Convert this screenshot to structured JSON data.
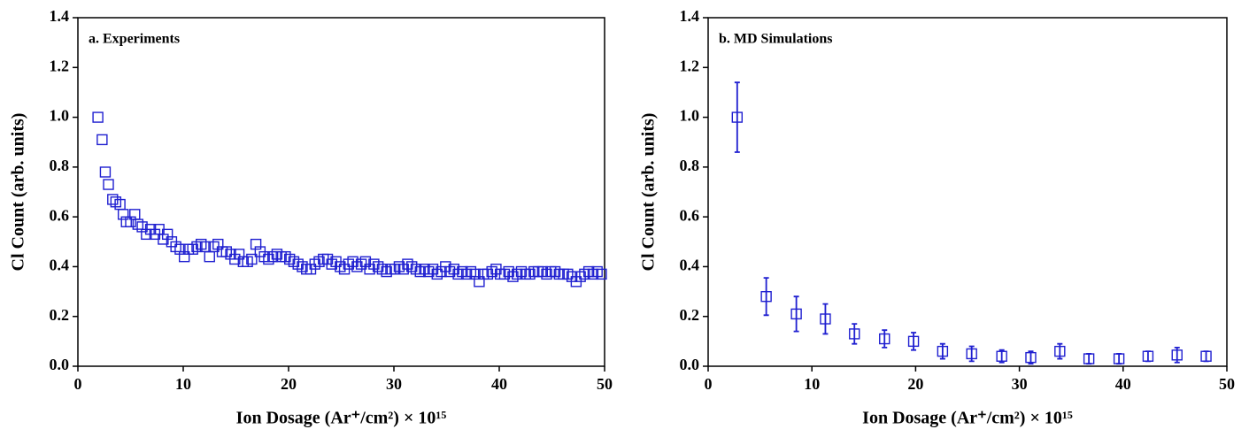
{
  "chart_data": [
    {
      "type": "scatter",
      "annotation": "a. Experiments",
      "x_label": "Ion Dosage (Ar⁺/cm²) × 10¹⁵",
      "y_label": "Cl Count (arb. units)",
      "color": "#1f1fd0",
      "xlim": [
        0,
        50
      ],
      "ylim": [
        0,
        1.4
      ],
      "xticks": [
        0,
        10,
        20,
        30,
        40,
        50
      ],
      "yticks": [
        {
          "value": 0,
          "label": "0.0"
        },
        0.2,
        0.4,
        0.6,
        0.8,
        {
          "value": 1,
          "label": "1.0"
        },
        1.2,
        1.4
      ],
      "x": [
        1.9,
        2.3,
        2.6,
        2.9,
        3.3,
        3.6,
        4.0,
        4.3,
        4.6,
        5.0,
        5.4,
        5.7,
        6.1,
        6.5,
        6.9,
        7.3,
        7.7,
        8.1,
        8.5,
        8.9,
        9.3,
        9.7,
        10.1,
        10.5,
        10.9,
        11.3,
        11.7,
        12.1,
        12.5,
        12.9,
        13.3,
        13.7,
        14.1,
        14.5,
        14.9,
        15.3,
        15.7,
        16.1,
        16.5,
        16.9,
        17.3,
        17.7,
        18.1,
        18.5,
        18.9,
        19.3,
        19.7,
        20.1,
        20.5,
        20.9,
        21.3,
        21.7,
        22.1,
        22.5,
        22.9,
        23.3,
        23.7,
        24.1,
        24.5,
        24.9,
        25.3,
        25.7,
        26.1,
        26.5,
        26.9,
        27.3,
        27.7,
        28.1,
        28.5,
        28.9,
        29.3,
        29.7,
        30.1,
        30.5,
        30.9,
        31.3,
        31.7,
        32.1,
        32.5,
        32.9,
        33.3,
        33.7,
        34.1,
        34.5,
        34.9,
        35.3,
        35.7,
        36.1,
        36.5,
        36.9,
        37.3,
        37.7,
        38.1,
        38.5,
        38.9,
        39.3,
        39.7,
        40.1,
        40.5,
        40.9,
        41.3,
        41.7,
        42.1,
        42.5,
        42.9,
        43.3,
        43.7,
        44.1,
        44.5,
        44.9,
        45.3,
        45.7,
        46.1,
        46.5,
        46.9,
        47.3,
        47.7,
        48.1,
        48.5,
        48.9,
        49.3,
        49.7
      ],
      "values": [
        1.0,
        0.91,
        0.78,
        0.73,
        0.67,
        0.66,
        0.65,
        0.61,
        0.58,
        0.58,
        0.61,
        0.57,
        0.56,
        0.53,
        0.55,
        0.53,
        0.55,
        0.51,
        0.53,
        0.5,
        0.48,
        0.47,
        0.44,
        0.47,
        0.47,
        0.48,
        0.49,
        0.48,
        0.44,
        0.48,
        0.49,
        0.46,
        0.46,
        0.45,
        0.43,
        0.45,
        0.42,
        0.42,
        0.43,
        0.49,
        0.46,
        0.44,
        0.43,
        0.44,
        0.45,
        0.44,
        0.44,
        0.43,
        0.42,
        0.41,
        0.4,
        0.39,
        0.39,
        0.41,
        0.42,
        0.43,
        0.43,
        0.41,
        0.42,
        0.4,
        0.39,
        0.41,
        0.42,
        0.4,
        0.41,
        0.42,
        0.39,
        0.41,
        0.4,
        0.39,
        0.38,
        0.39,
        0.39,
        0.4,
        0.39,
        0.41,
        0.4,
        0.39,
        0.38,
        0.39,
        0.38,
        0.39,
        0.37,
        0.38,
        0.4,
        0.38,
        0.39,
        0.37,
        0.38,
        0.37,
        0.38,
        0.37,
        0.34,
        0.37,
        0.37,
        0.38,
        0.39,
        0.37,
        0.37,
        0.38,
        0.36,
        0.37,
        0.38,
        0.37,
        0.37,
        0.38,
        0.38,
        0.38,
        0.37,
        0.38,
        0.38,
        0.37,
        0.37,
        0.37,
        0.36,
        0.34,
        0.36,
        0.37,
        0.38,
        0.37,
        0.38,
        0.37
      ]
    },
    {
      "type": "errorbar",
      "annotation": "b. MD Simulations",
      "x_label": "Ion Dosage (Ar⁺/cm²) × 10¹⁵",
      "y_label": "Cl Count (arb. units)",
      "color": "#1f1fd0",
      "xlim": [
        0,
        50
      ],
      "ylim": [
        0,
        1.4
      ],
      "xticks": [
        0,
        10,
        20,
        30,
        40,
        50
      ],
      "yticks": [
        {
          "value": 0,
          "label": "0.0"
        },
        0.2,
        0.4,
        0.6,
        0.8,
        {
          "value": 1,
          "label": "1.0"
        },
        1.2,
        1.4
      ],
      "x": [
        2.8,
        5.6,
        8.5,
        11.3,
        14.1,
        17.0,
        19.8,
        22.6,
        25.4,
        28.3,
        31.1,
        33.9,
        36.7,
        39.6,
        42.4,
        45.2,
        48.0
      ],
      "values": [
        1.0,
        0.28,
        0.21,
        0.19,
        0.13,
        0.11,
        0.1,
        0.06,
        0.05,
        0.04,
        0.035,
        0.06,
        0.03,
        0.03,
        0.04,
        0.045,
        0.04
      ],
      "errors": [
        0.14,
        0.075,
        0.07,
        0.06,
        0.04,
        0.035,
        0.035,
        0.03,
        0.03,
        0.025,
        0.025,
        0.03,
        0.02,
        0.02,
        0.02,
        0.03,
        0.02
      ]
    }
  ]
}
